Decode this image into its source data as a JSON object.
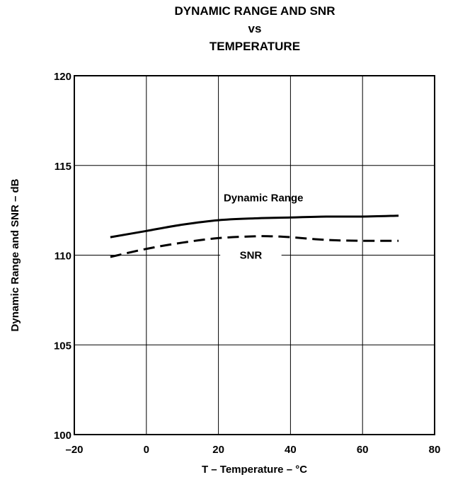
{
  "chart_data": {
    "type": "line",
    "title_lines": [
      "DYNAMIC RANGE AND SNR",
      "vs",
      "TEMPERATURE"
    ],
    "xlabel": "T – Temperature – °C",
    "ylabel": "Dynamic Range and SNR – dB",
    "xlim": [
      -20,
      80
    ],
    "ylim": [
      100,
      120
    ],
    "xticks": [
      -20,
      0,
      20,
      40,
      60,
      80
    ],
    "yticks": [
      100,
      105,
      110,
      115,
      120
    ],
    "xtick_labels": [
      "–20",
      "0",
      "20",
      "40",
      "60",
      "80"
    ],
    "ytick_labels": [
      "100",
      "105",
      "110",
      "115",
      "120"
    ],
    "grid": true,
    "series": [
      {
        "name": "Dynamic Range",
        "style": "solid",
        "color": "#000000",
        "x": [
          -10,
          0,
          10,
          20,
          30,
          40,
          50,
          60,
          70
        ],
        "y": [
          111.0,
          111.35,
          111.7,
          111.95,
          112.05,
          112.1,
          112.15,
          112.15,
          112.2
        ]
      },
      {
        "name": "SNR",
        "style": "dashed",
        "color": "#000000",
        "x": [
          -10,
          0,
          10,
          20,
          30,
          35,
          40,
          50,
          60,
          70
        ],
        "y": [
          109.9,
          110.35,
          110.7,
          110.95,
          111.05,
          111.05,
          111.0,
          110.85,
          110.8,
          110.8
        ]
      }
    ]
  }
}
